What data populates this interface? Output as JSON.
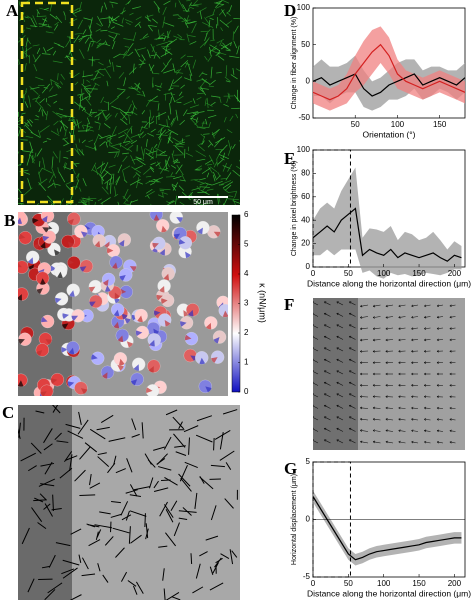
{
  "figure": {
    "panel_labels": [
      "A",
      "B",
      "C",
      "D",
      "E",
      "F",
      "G"
    ],
    "scale_bar": "50 μm",
    "colorbar": {
      "label": "κ (nN/μm)",
      "lim": [
        0,
        6
      ],
      "ticks": [
        0,
        1,
        2,
        3,
        4,
        5,
        6
      ]
    }
  },
  "chart_data": [
    {
      "type": "line",
      "xlabel": "Orientation (°)",
      "ylabel": "Change in fiber alignment (%)",
      "xlim": [
        0,
        180
      ],
      "ylim": [
        -50,
        100
      ],
      "xticks": [
        50,
        100,
        150
      ],
      "yticks": [
        -50,
        0,
        50,
        100
      ],
      "x": [
        0,
        10,
        20,
        30,
        40,
        50,
        60,
        70,
        80,
        90,
        100,
        110,
        120,
        130,
        140,
        150,
        160,
        170,
        180
      ],
      "series": [
        {
          "color": "#000000",
          "band_color": "#9a9a9a",
          "values": [
            0,
            5,
            -5,
            0,
            5,
            10,
            -10,
            -20,
            -15,
            -5,
            0,
            5,
            10,
            -5,
            0,
            5,
            0,
            -5,
            5
          ],
          "error": [
            20,
            25,
            25,
            20,
            20,
            25,
            25,
            20,
            20,
            20,
            25,
            25,
            20,
            20,
            20,
            15,
            15,
            20,
            20
          ]
        },
        {
          "color": "#d42020",
          "band_color": "#f08080",
          "values": [
            -15,
            -20,
            -25,
            -20,
            -10,
            10,
            25,
            40,
            50,
            35,
            10,
            0,
            -5,
            -10,
            -5,
            0,
            -5,
            -10,
            -15
          ],
          "error": [
            15,
            15,
            15,
            15,
            20,
            25,
            30,
            30,
            25,
            25,
            20,
            15,
            15,
            15,
            15,
            15,
            15,
            15,
            15
          ]
        }
      ]
    },
    {
      "type": "line",
      "xlabel": "Distance along the horizontal direction (μm)",
      "ylabel": "Change in pixel brightness (%)",
      "xlim": [
        0,
        215
      ],
      "ylim": [
        0,
        100
      ],
      "xticks": [
        0,
        50,
        100,
        150,
        200
      ],
      "yticks": [
        0,
        20,
        40,
        60,
        80,
        100
      ],
      "highlight_x": [
        0,
        53
      ],
      "x": [
        0,
        10,
        20,
        30,
        40,
        50,
        60,
        70,
        80,
        90,
        100,
        110,
        120,
        130,
        140,
        150,
        160,
        170,
        180,
        190,
        200,
        210
      ],
      "series": [
        {
          "color": "#000000",
          "band_color": "#9a9a9a",
          "values": [
            25,
            30,
            35,
            30,
            40,
            45,
            50,
            10,
            15,
            12,
            10,
            15,
            8,
            12,
            10,
            8,
            10,
            12,
            8,
            5,
            10,
            8
          ],
          "error": [
            15,
            20,
            20,
            20,
            25,
            30,
            35,
            15,
            18,
            20,
            20,
            20,
            15,
            18,
            18,
            15,
            15,
            18,
            15,
            10,
            12,
            10
          ]
        }
      ]
    },
    {
      "type": "line",
      "xlabel": "Distance along the horizontal direction (μm)",
      "ylabel": "Horizontal displacement (μm)",
      "xlim": [
        0,
        215
      ],
      "ylim": [
        -5,
        5
      ],
      "xticks": [
        0,
        50,
        100,
        150,
        200
      ],
      "yticks": [
        -5,
        0,
        5
      ],
      "highlight_x": [
        0,
        53
      ],
      "reference_line": 0,
      "x": [
        0,
        10,
        20,
        30,
        40,
        50,
        60,
        70,
        80,
        90,
        100,
        110,
        120,
        130,
        140,
        150,
        160,
        170,
        180,
        190,
        200,
        210
      ],
      "series": [
        {
          "color": "#000000",
          "band_color": "#9a9a9a",
          "values": [
            2,
            1,
            0,
            -1,
            -2,
            -3,
            -3.5,
            -3.3,
            -3,
            -2.8,
            -2.7,
            -2.6,
            -2.5,
            -2.4,
            -2.3,
            -2.2,
            -2,
            -1.9,
            -1.8,
            -1.7,
            -1.6,
            -1.6
          ],
          "error": [
            0.5,
            0.5,
            0.5,
            0.5,
            0.5,
            0.5,
            0.5,
            0.5,
            0.5,
            0.5,
            0.5,
            0.5,
            0.5,
            0.5,
            0.5,
            0.5,
            0.5,
            0.5,
            0.5,
            0.5,
            0.5,
            0.5
          ]
        }
      ]
    }
  ]
}
